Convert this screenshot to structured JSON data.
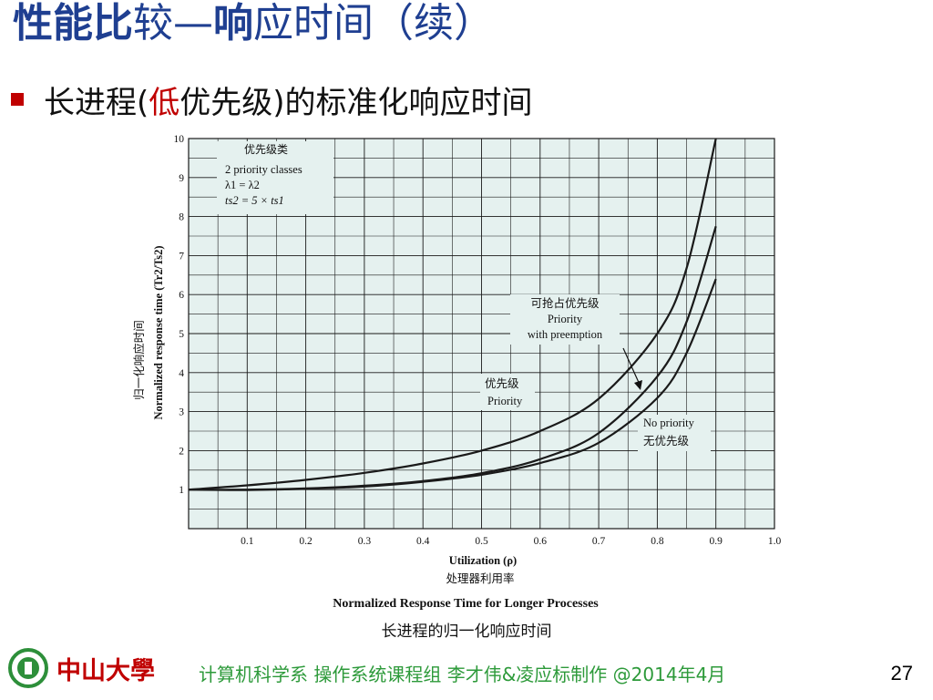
{
  "slide": {
    "title_bold": "性能比",
    "title_rest": "较—",
    "title_bold2": "响",
    "title_tail": "应时间（续）",
    "bullet_pre": "长进程(",
    "bullet_red": "低",
    "bullet_post": "优先级)的标准化响应时间",
    "footer_logo_text": "中山大學",
    "footer_credit": "计算机科学系 操作系统课程组 李才伟&凌应标制作 @2014年4月",
    "page_number": "27"
  },
  "colors": {
    "title": "#1f3f91",
    "accent_red": "#c00000",
    "footer_green": "#2d9a3a",
    "plot_bg": "#e5f1ef",
    "grid": "#1a1a1a",
    "curve": "#1a1a1a"
  },
  "chart_data": {
    "type": "line",
    "title": "Normalized Response Time for Longer Processes",
    "title_cn": "长进程的归一化响应时间",
    "xlabel": "Utilization (ρ)",
    "xlabel_cn": "处理器利用率",
    "ylabel": "Normalized response time (Tr2/Ts2)",
    "ylabel_cn": "归一化响应时间",
    "xlim": [
      0,
      1.0
    ],
    "ylim": [
      0,
      10
    ],
    "grid": true,
    "x_ticks": [
      "0.1",
      "0.2",
      "0.3",
      "0.4",
      "0.5",
      "0.6",
      "0.7",
      "0.8",
      "0.9",
      "1.0"
    ],
    "y_ticks": [
      "1",
      "2",
      "3",
      "4",
      "5",
      "6",
      "7",
      "8",
      "9",
      "10"
    ],
    "legend_box": {
      "title_cn": "优先级类",
      "line1": "2 priority classes",
      "line2": "λ1 = λ2",
      "line3": "ts2 = 5 × ts1"
    },
    "annotations": {
      "preempt_cn": "可抢占优先级",
      "preempt_en1": "Priority",
      "preempt_en2": "with preemption",
      "priority_cn": "优先级",
      "priority_en": "Priority",
      "nopri_en": "No priority",
      "nopri_cn": "无优先级"
    },
    "series": [
      {
        "name": "No priority",
        "x": [
          0,
          0.1,
          0.2,
          0.3,
          0.4,
          0.5,
          0.6,
          0.7,
          0.8,
          0.85,
          0.9
        ],
        "y": [
          1,
          1.11,
          1.25,
          1.43,
          1.67,
          2.0,
          2.5,
          3.33,
          5.0,
          6.67,
          10.0
        ]
      },
      {
        "name": "Priority",
        "x": [
          0,
          0.1,
          0.2,
          0.3,
          0.4,
          0.5,
          0.6,
          0.7,
          0.8,
          0.85,
          0.9
        ],
        "y": [
          1,
          1.0,
          1.03,
          1.1,
          1.22,
          1.42,
          1.78,
          2.45,
          3.9,
          5.3,
          7.75
        ]
      },
      {
        "name": "Priority with preemption",
        "x": [
          0,
          0.1,
          0.2,
          0.3,
          0.4,
          0.5,
          0.6,
          0.7,
          0.8,
          0.85,
          0.9
        ],
        "y": [
          1,
          0.99,
          1.02,
          1.08,
          1.2,
          1.38,
          1.68,
          2.2,
          3.35,
          4.5,
          6.4
        ]
      }
    ]
  }
}
